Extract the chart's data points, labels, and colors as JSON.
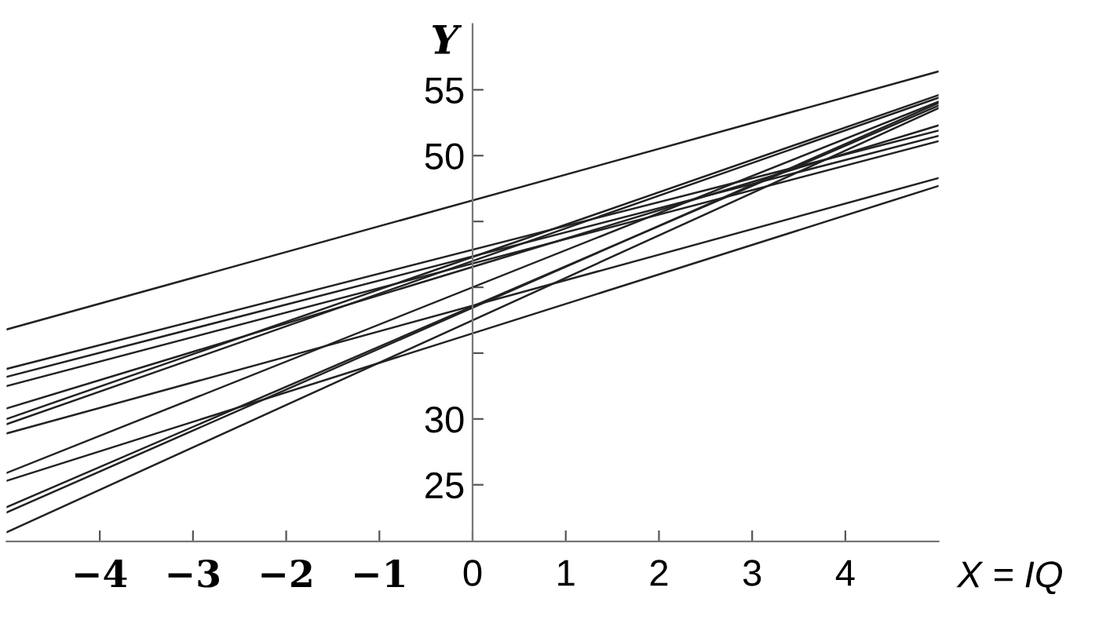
{
  "chart_data": {
    "type": "line",
    "xlabel": "X = IQ",
    "ylabel": "Y",
    "x": [
      -5,
      5
    ],
    "series": [
      {
        "color": "#222222",
        "values": [
          36.8,
          56.4
        ]
      },
      {
        "color": "#222222",
        "values": [
          33.8,
          51.9
        ]
      },
      {
        "color": "#222222",
        "values": [
          33.2,
          51.5
        ]
      },
      {
        "color": "#222222",
        "values": [
          32.5,
          51.1
        ]
      },
      {
        "color": "#222222",
        "values": [
          30.8,
          52.3
        ]
      },
      {
        "color": "#222222",
        "values": [
          30.0,
          54.6
        ]
      },
      {
        "color": "#222222",
        "values": [
          29.6,
          54.4
        ]
      },
      {
        "color": "#222222",
        "values": [
          28.9,
          48.3
        ]
      },
      {
        "color": "#222222",
        "values": [
          25.9,
          54.1
        ]
      },
      {
        "color": "#222222",
        "values": [
          25.3,
          47.7
        ]
      },
      {
        "color": "#222222",
        "values": [
          23.3,
          53.8
        ]
      },
      {
        "color": "#222222",
        "values": [
          22.9,
          54.0
        ]
      },
      {
        "color": "#222222",
        "values": [
          21.4,
          53.6
        ]
      }
    ],
    "xlim": [
      -5,
      5
    ],
    "xticks": [
      {
        "value": -4,
        "label": "−4"
      },
      {
        "value": -3,
        "label": "−3"
      },
      {
        "value": -2,
        "label": "−2"
      },
      {
        "value": -1,
        "label": "−1"
      },
      0,
      1,
      2,
      3,
      4
    ],
    "ylim": [
      20.7,
      60
    ],
    "yticks": [
      25,
      30,
      {
        "value": 35,
        "label": null
      },
      {
        "value": 40,
        "label": null
      },
      {
        "value": 45,
        "label": null
      },
      50,
      55
    ],
    "marker": "none",
    "line_style": "solid"
  }
}
